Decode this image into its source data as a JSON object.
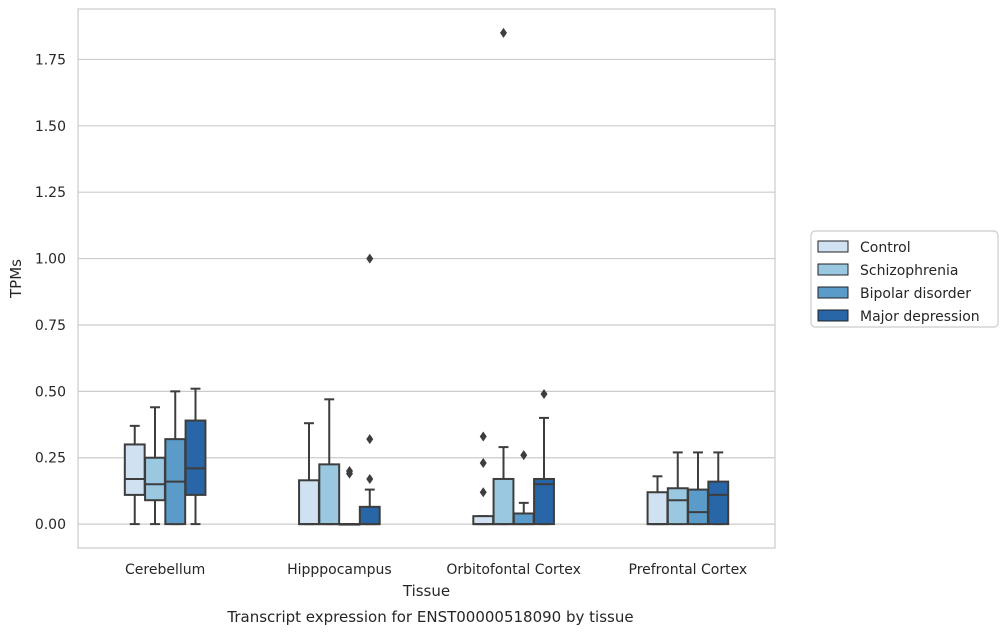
{
  "chart_data": {
    "type": "box",
    "caption": "Transcript expression for ENST00000518090 by tissue",
    "xlabel": "Tissue",
    "ylabel": "TPMs",
    "ylim": [
      -0.09,
      1.94
    ],
    "yticks": [
      "0.00",
      "0.25",
      "0.50",
      "0.75",
      "1.00",
      "1.25",
      "1.50",
      "1.75"
    ],
    "grid": true,
    "legend_position": "right",
    "categories": [
      "Cerebellum",
      "Hipppocampus",
      "Orbitofontal Cortex",
      "Prefrontal Cortex"
    ],
    "series": [
      {
        "name": "Control",
        "color": "#d0e1f2",
        "boxes": [
          {
            "whislo": 0.0,
            "q1": 0.11,
            "median": 0.17,
            "q3": 0.3,
            "whishi": 0.37,
            "fliers": []
          },
          {
            "whislo": 0.0,
            "q1": 0.0,
            "median": 0.0,
            "q3": 0.165,
            "whishi": 0.38,
            "fliers": []
          },
          {
            "whislo": 0.0,
            "q1": 0.0,
            "median": 0.0,
            "q3": 0.03,
            "whishi": 0.03,
            "fliers": [
              0.12,
              0.23,
              0.33
            ]
          },
          {
            "whislo": 0.0,
            "q1": 0.0,
            "median": 0.0,
            "q3": 0.12,
            "whishi": 0.18,
            "fliers": []
          }
        ]
      },
      {
        "name": "Schizophrenia",
        "color": "#9ac8e0",
        "boxes": [
          {
            "whislo": 0.0,
            "q1": 0.09,
            "median": 0.15,
            "q3": 0.25,
            "whishi": 0.44,
            "fliers": []
          },
          {
            "whislo": 0.0,
            "q1": 0.0,
            "median": 0.0,
            "q3": 0.225,
            "whishi": 0.47,
            "fliers": []
          },
          {
            "whislo": 0.0,
            "q1": 0.0,
            "median": 0.0,
            "q3": 0.17,
            "whishi": 0.29,
            "fliers": [
              1.85
            ]
          },
          {
            "whislo": 0.0,
            "q1": 0.0,
            "median": 0.09,
            "q3": 0.135,
            "whishi": 0.27,
            "fliers": []
          }
        ]
      },
      {
        "name": "Bipolar disorder",
        "color": "#5a9bc9",
        "boxes": [
          {
            "whislo": 0.0,
            "q1": 0.0,
            "median": 0.16,
            "q3": 0.32,
            "whishi": 0.5,
            "fliers": []
          },
          {
            "whislo": 0.0,
            "q1": 0.0,
            "median": 0.0,
            "q3": 0.0,
            "whishi": 0.0,
            "fliers": [
              0.19,
              0.2
            ]
          },
          {
            "whislo": 0.0,
            "q1": 0.0,
            "median": 0.0,
            "q3": 0.04,
            "whishi": 0.08,
            "fliers": [
              0.26
            ]
          },
          {
            "whislo": 0.0,
            "q1": 0.0,
            "median": 0.045,
            "q3": 0.13,
            "whishi": 0.27,
            "fliers": []
          }
        ]
      },
      {
        "name": "Major depression",
        "color": "#2866a8",
        "boxes": [
          {
            "whislo": 0.0,
            "q1": 0.11,
            "median": 0.21,
            "q3": 0.39,
            "whishi": 0.51,
            "fliers": []
          },
          {
            "whislo": 0.0,
            "q1": 0.0,
            "median": 0.0,
            "q3": 0.065,
            "whishi": 0.13,
            "fliers": [
              0.17,
              0.32,
              1.0
            ]
          },
          {
            "whislo": 0.0,
            "q1": 0.0,
            "median": 0.15,
            "q3": 0.17,
            "whishi": 0.4,
            "fliers": [
              0.49
            ]
          },
          {
            "whislo": 0.0,
            "q1": 0.0,
            "median": 0.11,
            "q3": 0.16,
            "whishi": 0.27,
            "fliers": []
          }
        ]
      }
    ]
  }
}
